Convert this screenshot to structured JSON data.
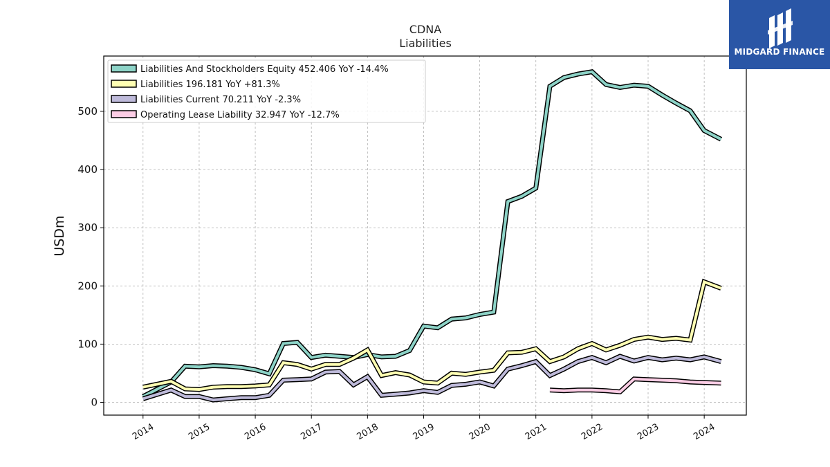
{
  "logo": {
    "text": "MIDGARD FINANCE",
    "icon": "midgard-logo-icon",
    "background": "#2a56a6"
  },
  "chart_data": {
    "type": "line",
    "title": "CDNA",
    "subtitle": "Liabilities",
    "ylabel": "USDm",
    "xlabel": "",
    "ylim": [
      -22,
      595
    ],
    "xlim": [
      2013.3,
      2024.75
    ],
    "yticks": [
      0,
      100,
      200,
      300,
      400,
      500
    ],
    "ytick_labels": [
      "0",
      "100",
      "200",
      "300",
      "400",
      "500"
    ],
    "xticks": [
      2014,
      2015,
      2016,
      2017,
      2018,
      2019,
      2020,
      2021,
      2022,
      2023,
      2024
    ],
    "xtick_labels": [
      "2014",
      "2015",
      "2016",
      "2017",
      "2018",
      "2019",
      "2020",
      "2021",
      "2022",
      "2023",
      "2024"
    ],
    "grid": true,
    "legend_position": "top-left",
    "series": [
      {
        "name": "Liabilities And Stockholders Equity",
        "legend": "Liabilities And Stockholders Equity  452.406 YoY -14.4%",
        "color": "#8dd3c7",
        "points": [
          [
            2014.0,
            10
          ],
          [
            2014.5,
            35
          ],
          [
            2014.75,
            62
          ],
          [
            2015.0,
            61
          ],
          [
            2015.25,
            63
          ],
          [
            2015.5,
            62
          ],
          [
            2015.75,
            60
          ],
          [
            2016.0,
            56
          ],
          [
            2016.25,
            49
          ],
          [
            2016.5,
            101
          ],
          [
            2016.75,
            103
          ],
          [
            2017.0,
            77
          ],
          [
            2017.25,
            81
          ],
          [
            2017.5,
            79
          ],
          [
            2017.75,
            77
          ],
          [
            2018.0,
            82
          ],
          [
            2018.25,
            78
          ],
          [
            2018.5,
            79
          ],
          [
            2018.75,
            89
          ],
          [
            2019.0,
            131
          ],
          [
            2019.25,
            128
          ],
          [
            2019.5,
            143
          ],
          [
            2019.75,
            145
          ],
          [
            2020.0,
            151
          ],
          [
            2020.25,
            155
          ],
          [
            2020.5,
            345
          ],
          [
            2020.75,
            354
          ],
          [
            2021.0,
            368
          ],
          [
            2021.25,
            543
          ],
          [
            2021.5,
            558
          ],
          [
            2021.75,
            564
          ],
          [
            2022.0,
            568
          ],
          [
            2022.25,
            546
          ],
          [
            2022.5,
            541
          ],
          [
            2022.75,
            545
          ],
          [
            2023.0,
            543
          ],
          [
            2023.25,
            528
          ],
          [
            2023.5,
            514
          ],
          [
            2023.75,
            501
          ],
          [
            2024.0,
            467
          ],
          [
            2024.3,
            452
          ]
        ]
      },
      {
        "name": "Liabilities",
        "legend": "Liabilities  196.181 YoY +81.3%",
        "color": "#ffffb3",
        "points": [
          [
            2014.0,
            26
          ],
          [
            2014.5,
            36
          ],
          [
            2014.75,
            23
          ],
          [
            2015.0,
            22
          ],
          [
            2015.25,
            26
          ],
          [
            2015.5,
            27
          ],
          [
            2015.75,
            27
          ],
          [
            2016.0,
            28
          ],
          [
            2016.25,
            30
          ],
          [
            2016.5,
            68
          ],
          [
            2016.75,
            65
          ],
          [
            2017.0,
            57
          ],
          [
            2017.25,
            65
          ],
          [
            2017.5,
            65
          ],
          [
            2017.75,
            76
          ],
          [
            2018.0,
            90
          ],
          [
            2018.25,
            46
          ],
          [
            2018.5,
            51
          ],
          [
            2018.75,
            47
          ],
          [
            2019.0,
            35
          ],
          [
            2019.25,
            33
          ],
          [
            2019.5,
            50
          ],
          [
            2019.75,
            48
          ],
          [
            2020.0,
            52
          ],
          [
            2020.25,
            55
          ],
          [
            2020.5,
            85
          ],
          [
            2020.75,
            86
          ],
          [
            2021.0,
            92
          ],
          [
            2021.25,
            70
          ],
          [
            2021.5,
            78
          ],
          [
            2021.75,
            92
          ],
          [
            2022.0,
            101
          ],
          [
            2022.25,
            90
          ],
          [
            2022.5,
            98
          ],
          [
            2022.75,
            108
          ],
          [
            2023.0,
            112
          ],
          [
            2023.25,
            108
          ],
          [
            2023.5,
            110
          ],
          [
            2023.75,
            107
          ],
          [
            2024.0,
            207
          ],
          [
            2024.3,
            196
          ]
        ]
      },
      {
        "name": "Liabilities Current",
        "legend": "Liabilities Current  70.211 YoY -2.3%",
        "color": "#bebada",
        "points": [
          [
            2014.0,
            6
          ],
          [
            2014.5,
            21
          ],
          [
            2014.75,
            10
          ],
          [
            2015.0,
            10
          ],
          [
            2015.25,
            4
          ],
          [
            2015.5,
            6
          ],
          [
            2015.75,
            8
          ],
          [
            2016.0,
            8
          ],
          [
            2016.25,
            12
          ],
          [
            2016.5,
            38
          ],
          [
            2016.75,
            39
          ],
          [
            2017.0,
            40
          ],
          [
            2017.25,
            52
          ],
          [
            2017.5,
            53
          ],
          [
            2017.75,
            30
          ],
          [
            2018.0,
            44
          ],
          [
            2018.25,
            12
          ],
          [
            2018.5,
            14
          ],
          [
            2018.75,
            16
          ],
          [
            2019.0,
            20
          ],
          [
            2019.25,
            17
          ],
          [
            2019.5,
            29
          ],
          [
            2019.75,
            31
          ],
          [
            2020.0,
            35
          ],
          [
            2020.25,
            28
          ],
          [
            2020.5,
            57
          ],
          [
            2020.75,
            63
          ],
          [
            2021.0,
            70
          ],
          [
            2021.25,
            46
          ],
          [
            2021.5,
            57
          ],
          [
            2021.75,
            70
          ],
          [
            2022.0,
            77
          ],
          [
            2022.25,
            68
          ],
          [
            2022.5,
            79
          ],
          [
            2022.75,
            71
          ],
          [
            2023.0,
            77
          ],
          [
            2023.25,
            73
          ],
          [
            2023.5,
            76
          ],
          [
            2023.75,
            73
          ],
          [
            2024.0,
            78
          ],
          [
            2024.3,
            70
          ]
        ]
      },
      {
        "name": "Operating Lease Liability",
        "legend": "Operating Lease Liability  32.947 YoY -12.7%",
        "color": "#fccde5",
        "points": [
          [
            2021.25,
            21
          ],
          [
            2021.5,
            20
          ],
          [
            2021.75,
            21
          ],
          [
            2022.0,
            21
          ],
          [
            2022.25,
            20
          ],
          [
            2022.5,
            18
          ],
          [
            2022.75,
            40
          ],
          [
            2023.0,
            39
          ],
          [
            2023.25,
            38
          ],
          [
            2023.5,
            37
          ],
          [
            2023.75,
            35
          ],
          [
            2024.0,
            34
          ],
          [
            2024.3,
            33
          ]
        ]
      }
    ]
  }
}
